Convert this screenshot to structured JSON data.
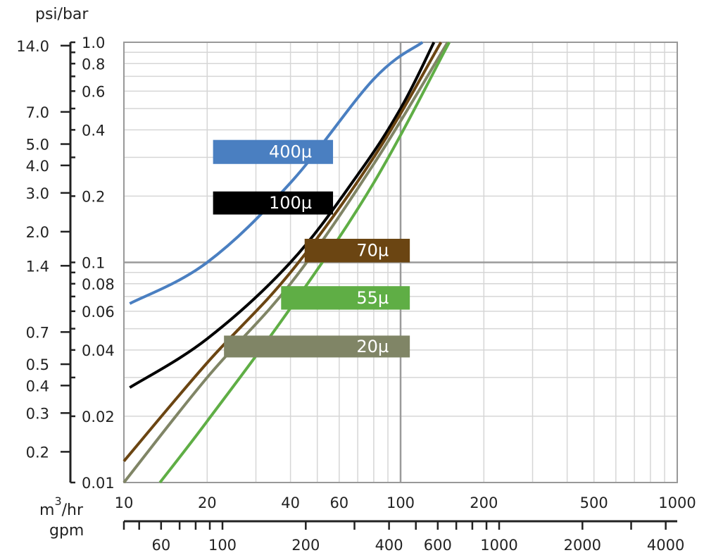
{
  "chart_data": {
    "type": "line",
    "title": "",
    "y_units_label": "psi/bar",
    "x_units_label_top_base": "m",
    "x_units_label_top_sup": "3",
    "x_units_label_top_rest": "/hr",
    "x_units_label_bottom": "gpm",
    "scale": "log-log",
    "grid": true,
    "xlim_m3hr": [
      10,
      1000
    ],
    "ylim_bar": [
      0.01,
      1.0
    ],
    "x_ticks_m3hr": [
      {
        "value": 10,
        "label": "10"
      },
      {
        "value": 20,
        "label": "20"
      },
      {
        "value": 40,
        "label": "40"
      },
      {
        "value": 60,
        "label": "60"
      },
      {
        "value": 100,
        "label": "100"
      },
      {
        "value": 200,
        "label": "200"
      },
      {
        "value": 500,
        "label": "500"
      },
      {
        "value": 1000,
        "label": "1000"
      }
    ],
    "x_ticks_gpm": [
      {
        "value": 60,
        "label": "60"
      },
      {
        "value": 100,
        "label": "100"
      },
      {
        "value": 200,
        "label": "200"
      },
      {
        "value": 400,
        "label": "400"
      },
      {
        "value": 600,
        "label": "600"
      },
      {
        "value": 1000,
        "label": "1000"
      },
      {
        "value": 2000,
        "label": "2000"
      },
      {
        "value": 4000,
        "label": "4000"
      }
    ],
    "y_ticks_bar": [
      {
        "value": 1.0,
        "label": "1.0"
      },
      {
        "value": 0.8,
        "label": "0.8"
      },
      {
        "value": 0.6,
        "label": "0.6"
      },
      {
        "value": 0.4,
        "label": "0.4"
      },
      {
        "value": 0.2,
        "label": "0.2"
      },
      {
        "value": 0.1,
        "label": "0.1"
      },
      {
        "value": 0.08,
        "label": "0.08"
      },
      {
        "value": 0.06,
        "label": "0.06"
      },
      {
        "value": 0.04,
        "label": "0.04"
      },
      {
        "value": 0.02,
        "label": "0.02"
      },
      {
        "value": 0.01,
        "label": "0.01"
      }
    ],
    "y_ticks_psi": [
      {
        "value": 14.0,
        "label": "14.0"
      },
      {
        "value": 7.0,
        "label": "7.0"
      },
      {
        "value": 5.0,
        "label": "5.0"
      },
      {
        "value": 4.0,
        "label": "4.0"
      },
      {
        "value": 3.0,
        "label": "3.0"
      },
      {
        "value": 2.0,
        "label": "2.0"
      },
      {
        "value": 1.4,
        "label": "1.4"
      },
      {
        "value": 0.7,
        "label": "0.7"
      },
      {
        "value": 0.5,
        "label": "0.5"
      },
      {
        "value": 0.4,
        "label": "0.4"
      },
      {
        "value": 0.3,
        "label": "0.3"
      },
      {
        "value": 0.2,
        "label": "0.2"
      }
    ],
    "series": [
      {
        "name": "400µ",
        "color": "#4a7fc1",
        "points": [
          [
            10.5,
            0.065
          ],
          [
            20,
            0.1
          ],
          [
            40,
            0.23
          ],
          [
            80,
            0.68
          ],
          [
            120,
            1.0
          ]
        ]
      },
      {
        "name": "100µ",
        "color": "#000000",
        "points": [
          [
            10.5,
            0.027
          ],
          [
            20,
            0.045
          ],
          [
            40,
            0.1
          ],
          [
            70,
            0.25
          ],
          [
            100,
            0.5
          ],
          [
            132,
            1.0
          ]
        ]
      },
      {
        "name": "70µ",
        "color": "#6b4512",
        "points": [
          [
            10,
            0.0125
          ],
          [
            20,
            0.035
          ],
          [
            40,
            0.09
          ],
          [
            80,
            0.3
          ],
          [
            140,
            1.0
          ]
        ]
      },
      {
        "name": "20µ",
        "color": "#808566",
        "points": [
          [
            10,
            0.01
          ],
          [
            20,
            0.03
          ],
          [
            40,
            0.08
          ],
          [
            80,
            0.28
          ],
          [
            148,
            1.0
          ]
        ]
      },
      {
        "name": "55µ",
        "color": "#5fae45",
        "points": [
          [
            13.5,
            0.01
          ],
          [
            20,
            0.019
          ],
          [
            40,
            0.062
          ],
          [
            80,
            0.23
          ],
          [
            150,
            1.0
          ]
        ]
      }
    ],
    "series_labels": [
      {
        "series": "400µ",
        "text": "400µ",
        "color": "#4a7fc1",
        "x_range": [
          21,
          57
        ],
        "y_range": [
          0.28,
          0.36
        ]
      },
      {
        "series": "100µ",
        "text": "100µ",
        "color": "#000000",
        "x_range": [
          21,
          57
        ],
        "y_range": [
          0.165,
          0.21
        ]
      },
      {
        "series": "70µ",
        "text": "70µ",
        "color": "#6b4512",
        "x_range": [
          45,
          108
        ],
        "y_range": [
          0.1,
          0.128
        ]
      },
      {
        "series": "55µ",
        "text": "55µ",
        "color": "#5fae45",
        "x_range": [
          37,
          108
        ],
        "y_range": [
          0.061,
          0.078
        ]
      },
      {
        "series": "20µ",
        "text": "20µ",
        "color": "#808566",
        "x_range": [
          23,
          108
        ],
        "y_range": [
          0.037,
          0.0465
        ]
      }
    ]
  }
}
